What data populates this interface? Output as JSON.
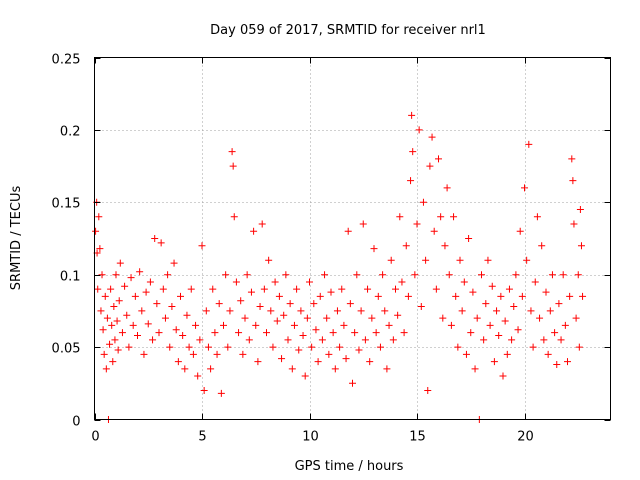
{
  "chart_data": {
    "type": "scatter",
    "title": "Day 059 of 2017, SRMTID for receiver nrl1",
    "xlabel": "GPS time / hours",
    "ylabel": "SRMTID / TECUs",
    "xlim": [
      0,
      24
    ],
    "ylim": [
      0,
      0.25
    ],
    "xticks": [
      0,
      5,
      10,
      15,
      20
    ],
    "yticks": [
      0,
      0.05,
      0.1,
      0.15,
      0.2,
      0.25
    ],
    "xtick_labels": [
      "0",
      "5",
      "10",
      "15",
      "20"
    ],
    "ytick_labels": [
      "0",
      "0.05",
      "0.1",
      "0.15",
      "0.2",
      "0.25"
    ],
    "grid": true,
    "marker": "+",
    "color": "#ff0000",
    "series": [
      {
        "name": "SRMTID",
        "points": [
          [
            0.05,
            0.13
          ],
          [
            0.1,
            0.15
          ],
          [
            0.12,
            0.115
          ],
          [
            0.15,
            0.09
          ],
          [
            0.2,
            0.14
          ],
          [
            0.25,
            0.118
          ],
          [
            0.3,
            0.075
          ],
          [
            0.35,
            0.1
          ],
          [
            0.4,
            0.062
          ],
          [
            0.45,
            0.045
          ],
          [
            0.5,
            0.085
          ],
          [
            0.55,
            0.035
          ],
          [
            0.6,
            0.07
          ],
          [
            0.65,
            0.0
          ],
          [
            0.7,
            0.052
          ],
          [
            0.75,
            0.09
          ],
          [
            0.8,
            0.065
          ],
          [
            0.85,
            0.04
          ],
          [
            0.9,
            0.078
          ],
          [
            0.95,
            0.055
          ],
          [
            1.0,
            0.1
          ],
          [
            1.05,
            0.068
          ],
          [
            1.1,
            0.048
          ],
          [
            1.15,
            0.082
          ],
          [
            1.2,
            0.108
          ],
          [
            1.3,
            0.06
          ],
          [
            1.4,
            0.092
          ],
          [
            1.5,
            0.072
          ],
          [
            1.6,
            0.05
          ],
          [
            1.7,
            0.098
          ],
          [
            1.8,
            0.065
          ],
          [
            1.9,
            0.085
          ],
          [
            2.0,
            0.058
          ],
          [
            2.1,
            0.102
          ],
          [
            2.2,
            0.075
          ],
          [
            2.3,
            0.045
          ],
          [
            2.4,
            0.088
          ],
          [
            2.5,
            0.066
          ],
          [
            2.6,
            0.095
          ],
          [
            2.7,
            0.055
          ],
          [
            2.8,
            0.125
          ],
          [
            2.9,
            0.08
          ],
          [
            3.0,
            0.06
          ],
          [
            3.1,
            0.122
          ],
          [
            3.2,
            0.09
          ],
          [
            3.3,
            0.07
          ],
          [
            3.4,
            0.1
          ],
          [
            3.5,
            0.05
          ],
          [
            3.6,
            0.078
          ],
          [
            3.7,
            0.108
          ],
          [
            3.8,
            0.062
          ],
          [
            3.9,
            0.04
          ],
          [
            4.0,
            0.085
          ],
          [
            4.1,
            0.058
          ],
          [
            4.2,
            0.035
          ],
          [
            4.3,
            0.072
          ],
          [
            4.4,
            0.05
          ],
          [
            4.5,
            0.09
          ],
          [
            4.6,
            0.045
          ],
          [
            4.7,
            0.065
          ],
          [
            4.8,
            0.03
          ],
          [
            4.9,
            0.055
          ],
          [
            5.0,
            0.12
          ],
          [
            5.1,
            0.02
          ],
          [
            5.2,
            0.075
          ],
          [
            5.3,
            0.05
          ],
          [
            5.4,
            0.035
          ],
          [
            5.5,
            0.09
          ],
          [
            5.6,
            0.06
          ],
          [
            5.7,
            0.045
          ],
          [
            5.8,
            0.08
          ],
          [
            5.9,
            0.018
          ],
          [
            6.0,
            0.065
          ],
          [
            6.1,
            0.1
          ],
          [
            6.2,
            0.05
          ],
          [
            6.3,
            0.075
          ],
          [
            6.4,
            0.185
          ],
          [
            6.45,
            0.175
          ],
          [
            6.5,
            0.14
          ],
          [
            6.6,
            0.095
          ],
          [
            6.7,
            0.06
          ],
          [
            6.8,
            0.082
          ],
          [
            6.9,
            0.045
          ],
          [
            7.0,
            0.07
          ],
          [
            7.1,
            0.1
          ],
          [
            7.2,
            0.055
          ],
          [
            7.3,
            0.088
          ],
          [
            7.4,
            0.13
          ],
          [
            7.5,
            0.065
          ],
          [
            7.6,
            0.04
          ],
          [
            7.7,
            0.078
          ],
          [
            7.8,
            0.135
          ],
          [
            7.9,
            0.09
          ],
          [
            8.0,
            0.06
          ],
          [
            8.1,
            0.11
          ],
          [
            8.2,
            0.075
          ],
          [
            8.3,
            0.05
          ],
          [
            8.4,
            0.095
          ],
          [
            8.5,
            0.068
          ],
          [
            8.6,
            0.085
          ],
          [
            8.7,
            0.042
          ],
          [
            8.8,
            0.072
          ],
          [
            8.9,
            0.1
          ],
          [
            9.0,
            0.055
          ],
          [
            9.1,
            0.08
          ],
          [
            9.2,
            0.035
          ],
          [
            9.3,
            0.065
          ],
          [
            9.4,
            0.09
          ],
          [
            9.5,
            0.048
          ],
          [
            9.6,
            0.075
          ],
          [
            9.7,
            0.058
          ],
          [
            9.8,
            0.03
          ],
          [
            9.9,
            0.07
          ],
          [
            10.0,
            0.095
          ],
          [
            10.1,
            0.05
          ],
          [
            10.2,
            0.08
          ],
          [
            10.3,
            0.062
          ],
          [
            10.4,
            0.04
          ],
          [
            10.5,
            0.085
          ],
          [
            10.6,
            0.055
          ],
          [
            10.7,
            0.1
          ],
          [
            10.8,
            0.07
          ],
          [
            10.9,
            0.045
          ],
          [
            11.0,
            0.088
          ],
          [
            11.1,
            0.06
          ],
          [
            11.2,
            0.035
          ],
          [
            11.3,
            0.075
          ],
          [
            11.4,
            0.05
          ],
          [
            11.5,
            0.09
          ],
          [
            11.6,
            0.065
          ],
          [
            11.7,
            0.042
          ],
          [
            11.8,
            0.13
          ],
          [
            11.9,
            0.08
          ],
          [
            12.0,
            0.025
          ],
          [
            12.1,
            0.06
          ],
          [
            12.2,
            0.1
          ],
          [
            12.3,
            0.048
          ],
          [
            12.4,
            0.075
          ],
          [
            12.5,
            0.135
          ],
          [
            12.6,
            0.055
          ],
          [
            12.7,
            0.09
          ],
          [
            12.8,
            0.04
          ],
          [
            12.9,
            0.07
          ],
          [
            13.0,
            0.118
          ],
          [
            13.1,
            0.06
          ],
          [
            13.2,
            0.085
          ],
          [
            13.3,
            0.05
          ],
          [
            13.4,
            0.1
          ],
          [
            13.5,
            0.075
          ],
          [
            13.6,
            0.035
          ],
          [
            13.7,
            0.065
          ],
          [
            13.8,
            0.11
          ],
          [
            13.9,
            0.055
          ],
          [
            14.0,
            0.09
          ],
          [
            14.1,
            0.072
          ],
          [
            14.2,
            0.14
          ],
          [
            14.3,
            0.095
          ],
          [
            14.4,
            0.06
          ],
          [
            14.5,
            0.12
          ],
          [
            14.6,
            0.085
          ],
          [
            14.7,
            0.165
          ],
          [
            14.75,
            0.21
          ],
          [
            14.8,
            0.185
          ],
          [
            14.9,
            0.1
          ],
          [
            15.0,
            0.135
          ],
          [
            15.1,
            0.2
          ],
          [
            15.2,
            0.078
          ],
          [
            15.3,
            0.15
          ],
          [
            15.4,
            0.11
          ],
          [
            15.5,
            0.02
          ],
          [
            15.6,
            0.175
          ],
          [
            15.7,
            0.195
          ],
          [
            15.8,
            0.13
          ],
          [
            15.9,
            0.09
          ],
          [
            16.0,
            0.18
          ],
          [
            16.1,
            0.14
          ],
          [
            16.2,
            0.07
          ],
          [
            16.3,
            0.12
          ],
          [
            16.4,
            0.16
          ],
          [
            16.5,
            0.1
          ],
          [
            16.6,
            0.065
          ],
          [
            16.7,
            0.14
          ],
          [
            16.8,
            0.085
          ],
          [
            16.9,
            0.05
          ],
          [
            17.0,
            0.11
          ],
          [
            17.1,
            0.075
          ],
          [
            17.2,
            0.095
          ],
          [
            17.3,
            0.045
          ],
          [
            17.4,
            0.125
          ],
          [
            17.5,
            0.06
          ],
          [
            17.6,
            0.088
          ],
          [
            17.7,
            0.035
          ],
          [
            17.8,
            0.07
          ],
          [
            17.9,
            0.0
          ],
          [
            18.0,
            0.1
          ],
          [
            18.1,
            0.055
          ],
          [
            18.2,
            0.08
          ],
          [
            18.3,
            0.11
          ],
          [
            18.4,
            0.065
          ],
          [
            18.5,
            0.092
          ],
          [
            18.6,
            0.04
          ],
          [
            18.7,
            0.075
          ],
          [
            18.8,
            0.058
          ],
          [
            18.9,
            0.085
          ],
          [
            19.0,
            0.03
          ],
          [
            19.1,
            0.068
          ],
          [
            19.2,
            0.045
          ],
          [
            19.3,
            0.09
          ],
          [
            19.4,
            0.055
          ],
          [
            19.5,
            0.078
          ],
          [
            19.6,
            0.1
          ],
          [
            19.7,
            0.062
          ],
          [
            19.8,
            0.13
          ],
          [
            19.9,
            0.085
          ],
          [
            20.0,
            0.16
          ],
          [
            20.1,
            0.11
          ],
          [
            20.2,
            0.19
          ],
          [
            20.3,
            0.075
          ],
          [
            20.4,
            0.05
          ],
          [
            20.5,
            0.095
          ],
          [
            20.6,
            0.14
          ],
          [
            20.7,
            0.07
          ],
          [
            20.8,
            0.12
          ],
          [
            20.9,
            0.055
          ],
          [
            21.0,
            0.088
          ],
          [
            21.1,
            0.045
          ],
          [
            21.2,
            0.075
          ],
          [
            21.3,
            0.1
          ],
          [
            21.4,
            0.06
          ],
          [
            21.5,
            0.038
          ],
          [
            21.6,
            0.08
          ],
          [
            21.7,
            0.055
          ],
          [
            21.8,
            0.1
          ],
          [
            21.9,
            0.065
          ],
          [
            22.0,
            0.04
          ],
          [
            22.1,
            0.085
          ],
          [
            22.2,
            0.18
          ],
          [
            22.25,
            0.165
          ],
          [
            22.3,
            0.135
          ],
          [
            22.4,
            0.07
          ],
          [
            22.5,
            0.1
          ],
          [
            22.55,
            0.05
          ],
          [
            22.6,
            0.145
          ],
          [
            22.65,
            0.12
          ],
          [
            22.7,
            0.085
          ]
        ]
      }
    ]
  }
}
